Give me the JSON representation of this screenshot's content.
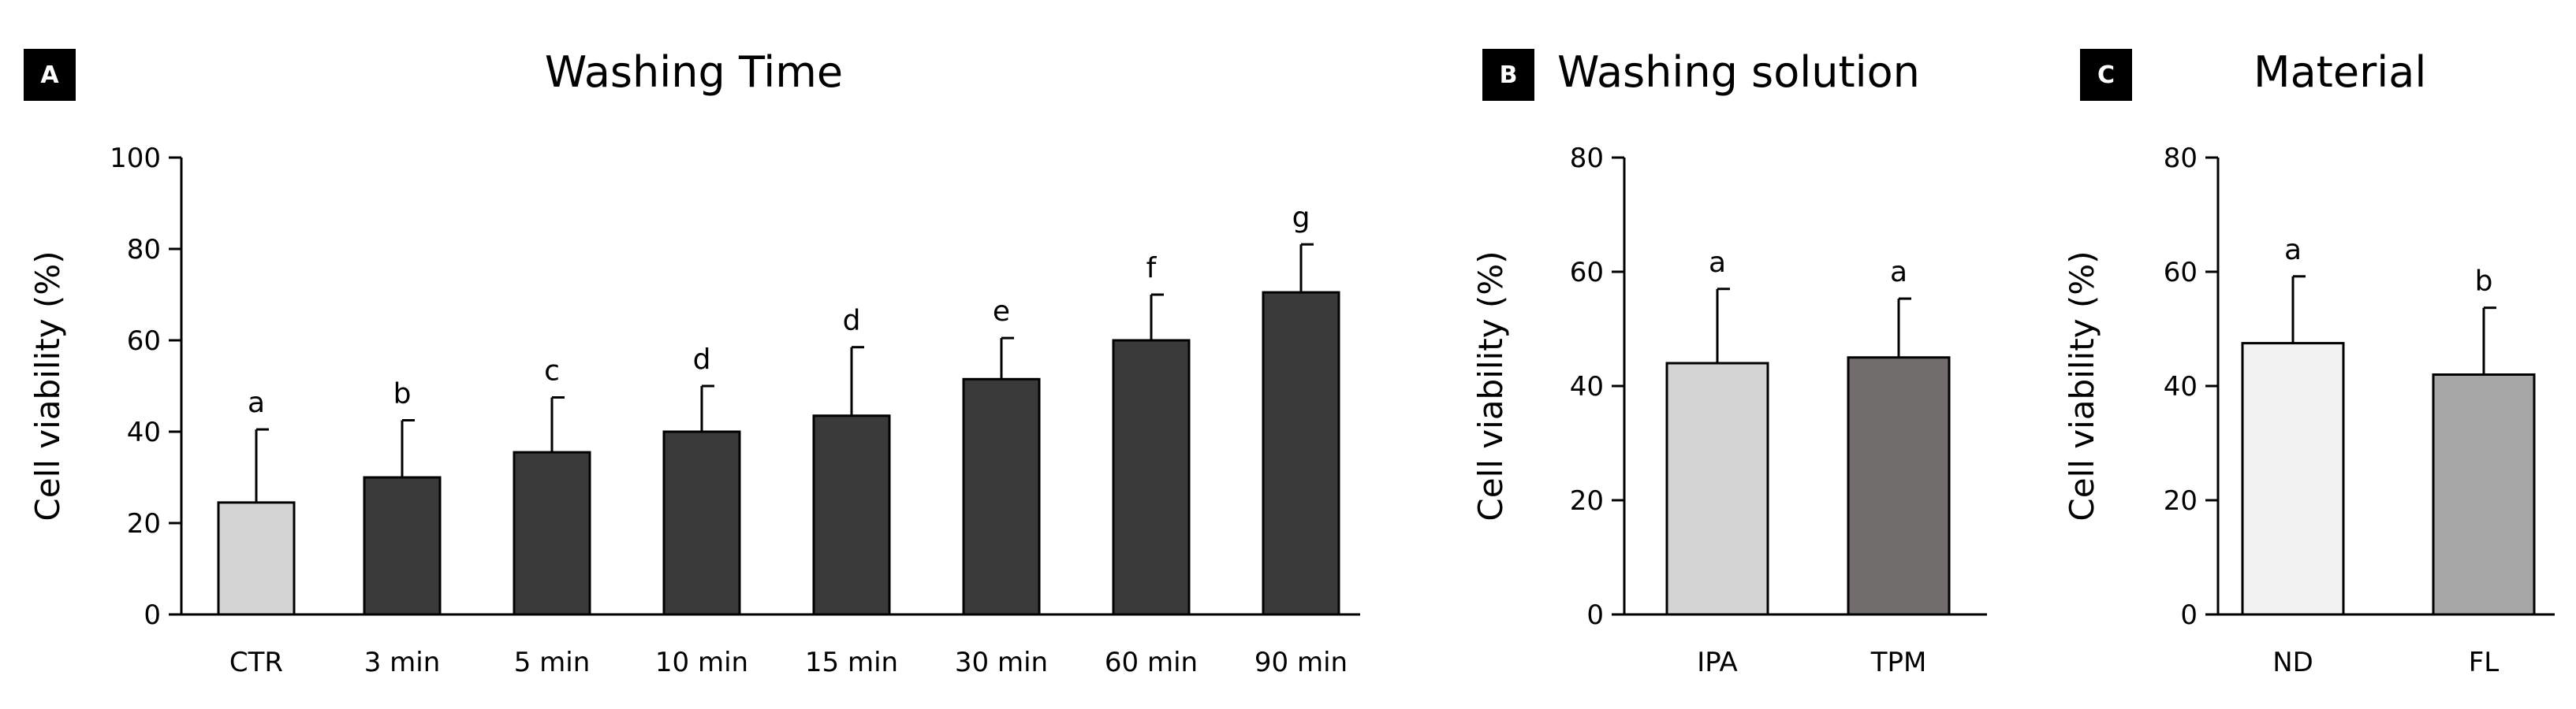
{
  "chart_data": [
    {
      "panel": "A",
      "type": "bar",
      "title": "Washing Time",
      "ylabel": "Cell viability (%)",
      "xlabel": "",
      "ylim": [
        0,
        100
      ],
      "yticks": [
        0,
        20,
        40,
        60,
        80,
        100
      ],
      "grid": false,
      "categories": [
        "CTR",
        "3 min",
        "5 min",
        "10 min",
        "15 min",
        "30 min",
        "60 min",
        "90 min"
      ],
      "values": [
        24.5,
        30,
        35.5,
        40,
        43.5,
        51.5,
        60,
        70.5
      ],
      "errors": [
        16,
        12.5,
        12,
        10,
        15,
        9,
        10,
        10.5
      ],
      "letters": [
        "a",
        "b",
        "c",
        "d",
        "d",
        "e",
        "f",
        "g"
      ],
      "colors": [
        "#d4d4d4",
        "#3a3a3a",
        "#3a3a3a",
        "#3a3a3a",
        "#3a3a3a",
        "#3a3a3a",
        "#3a3a3a",
        "#3a3a3a"
      ]
    },
    {
      "panel": "B",
      "type": "bar",
      "title": "Washing solution",
      "ylabel": "Cell viability (%)",
      "xlabel": "",
      "ylim": [
        0,
        80
      ],
      "yticks": [
        0,
        20,
        40,
        60,
        80
      ],
      "grid": false,
      "categories": [
        "IPA",
        "TPM"
      ],
      "values": [
        44,
        45
      ],
      "errors": [
        13,
        10.3
      ],
      "letters": [
        "a",
        "a"
      ],
      "colors": [
        "#d4d4d4",
        "#716d6d"
      ]
    },
    {
      "panel": "C",
      "type": "bar",
      "title": "Material",
      "ylabel": "Cell viability (%)",
      "xlabel": "",
      "ylim": [
        0,
        80
      ],
      "yticks": [
        0,
        20,
        40,
        60,
        80
      ],
      "grid": false,
      "categories": [
        "ND",
        "FL"
      ],
      "values": [
        47.5,
        42
      ],
      "errors": [
        11.7,
        11.7
      ],
      "letters": [
        "a",
        "b"
      ],
      "colors": [
        "#f2f2f2",
        "#a6a6a6"
      ]
    }
  ]
}
